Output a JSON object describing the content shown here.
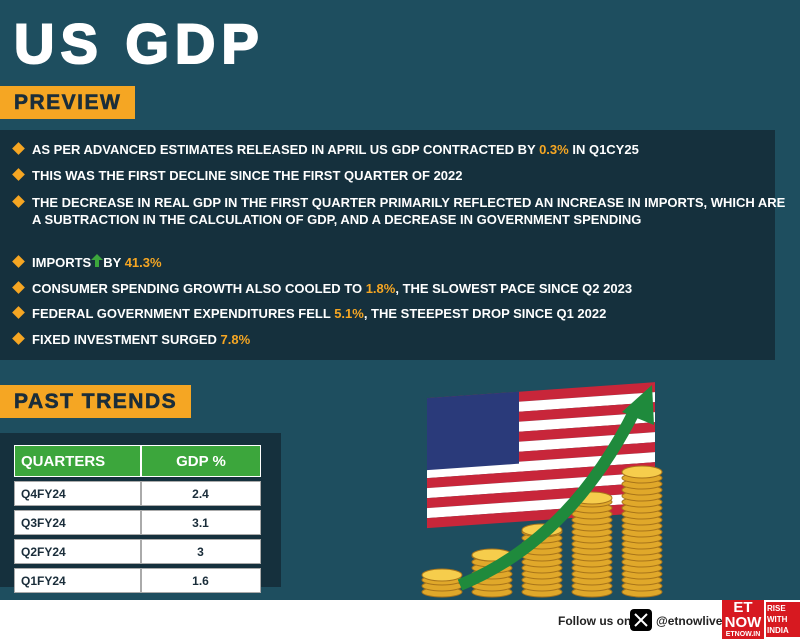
{
  "header": {
    "title": "US GDP"
  },
  "preview": {
    "label": "PREVIEW",
    "bullets": [
      {
        "before": "AS PER ADVANCED ESTIMATES RELEASED IN APRIL US GDP CONTRACTED BY",
        "highlight": "0.3%",
        "after": "IN Q1CY25"
      },
      {
        "text": "THIS WAS THE FIRST DECLINE SINCE THE FIRST QUARTER OF 2022"
      },
      {
        "text": "THE DECREASE IN REAL GDP IN THE FIRST QUARTER PRIMARILY REFLECTED AN INCREASE IN IMPORTS, WHICH ARE A SUBTRACTION IN THE CALCULATION OF GDP, AND A DECREASE IN GOVERNMENT SPENDING"
      },
      {
        "before": "IMPORTS",
        "middle": "BY",
        "highlight": "41.3%"
      },
      {
        "before": "CONSUMER SPENDING GROWTH ALSO COOLED TO",
        "highlight": "1.8%",
        "after": ", THE SLOWEST PACE SINCE Q2 2023"
      },
      {
        "before": "FEDERAL GOVERNMENT EXPENDITURES FELL",
        "highlight": "5.1%",
        "after": ", THE STEEPEST DROP SINCE Q1 2022"
      },
      {
        "before": "FIXED INVESTMENT SURGED",
        "highlight": "7.8%"
      }
    ]
  },
  "past_trends": {
    "label": "PAST TRENDS",
    "table": {
      "header": [
        "QUARTERS",
        "GDP %"
      ],
      "rows": [
        [
          "Q4FY24",
          2.4
        ],
        [
          "Q3FY24",
          3.1
        ],
        [
          "Q2FY24",
          3
        ],
        [
          "Q1FY24",
          1.6
        ]
      ]
    }
  },
  "footer": {
    "follow": "Follow us on",
    "handle": "@etnowlive",
    "logo": "ET NOW",
    "site": "ETNOW.IN",
    "tagline": "RISE WITH INDIA"
  }
}
